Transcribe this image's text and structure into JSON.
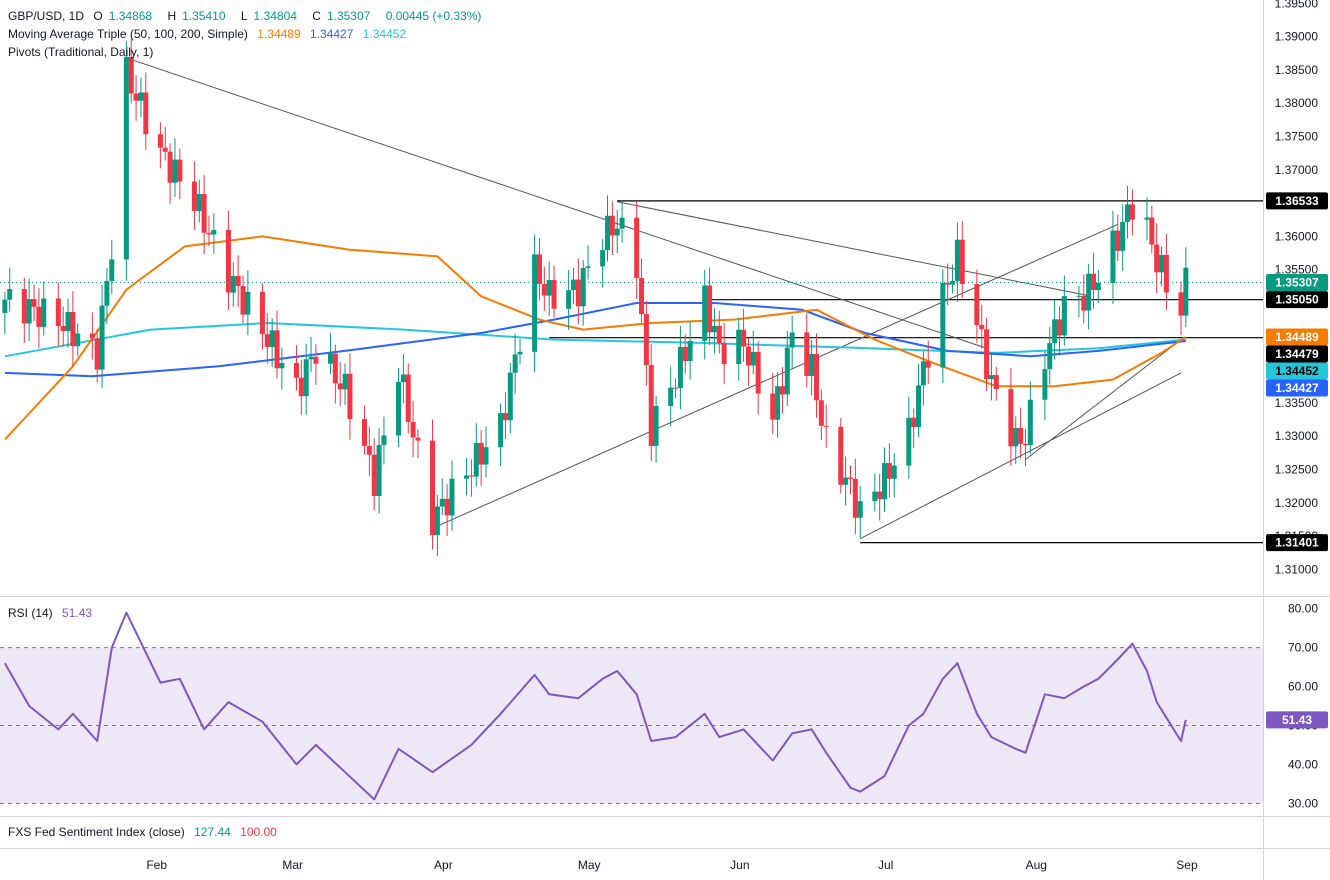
{
  "header": {
    "symbol": "GBP/USD, 1D",
    "o_label": "O",
    "open": "1.34868",
    "h_label": "H",
    "high": "1.35410",
    "l_label": "L",
    "low": "1.34804",
    "c_label": "C",
    "close": "1.35307",
    "change": "0.00445 (+0.33%)",
    "ma_title": "Moving Average Triple (50, 100, 200, Simple)",
    "ma50": "1.34489",
    "ma100": "1.34427",
    "ma200": "1.34452",
    "pivots_title": "Pivots (Traditional, Daily, 1)"
  },
  "rsi_panel": {
    "title": "RSI (14)",
    "value": "51.43"
  },
  "sentiment_panel": {
    "title": "FXS Fed Sentiment Index (close)",
    "value1": "127.44",
    "value2": "100.00"
  },
  "colors": {
    "up": "#089981",
    "down": "#f23645",
    "ma50": "#f57c00",
    "ma100": "#2962ff",
    "ma200": "#26c6da",
    "rsi": "#7e57c2",
    "rsi_band": "#ede7f6"
  },
  "chart_data": {
    "type": "candlestick",
    "price_axis": {
      "min": 1.306,
      "max": 1.3955,
      "ticks": [
        "1.39500",
        "1.39000",
        "1.38500",
        "1.38000",
        "1.37500",
        "1.37000",
        "1.36500",
        "1.36000",
        "1.35500",
        "1.35000",
        "1.34500",
        "1.34000",
        "1.33500",
        "1.33000",
        "1.32500",
        "1.32000",
        "1.31500",
        "1.31000"
      ]
    },
    "x_labels": [
      {
        "label": "Feb",
        "day": "2025-02-01"
      },
      {
        "label": "Mar",
        "day": "2025-03-01"
      },
      {
        "label": "Apr",
        "day": "2025-04-01"
      },
      {
        "label": "May",
        "day": "2025-05-01"
      },
      {
        "label": "Jun",
        "day": "2025-06-01"
      },
      {
        "label": "Jul",
        "day": "2025-07-01"
      },
      {
        "label": "Aug",
        "day": "2025-08-01"
      },
      {
        "label": "Sep",
        "day": "2025-09-01"
      }
    ],
    "price_tags": [
      {
        "value": "1.36533",
        "color": "#000000",
        "text_color": "#ffffff"
      },
      {
        "value": "1.35307",
        "color": "#089981",
        "text_color": "#ffffff"
      },
      {
        "value": "1.35050",
        "color": "#000000",
        "text_color": "#ffffff"
      },
      {
        "value": "1.34489",
        "color": "#f57c00",
        "text_color": "#ffffff"
      },
      {
        "value": "1.34479",
        "color": "#000000",
        "text_color": "#ffffff"
      },
      {
        "value": "1.34452",
        "color": "#26c6da",
        "text_color": "#000000"
      },
      {
        "value": "1.34427",
        "color": "#2962ff",
        "text_color": "#ffffff"
      },
      {
        "value": "1.31401",
        "color": "#000000",
        "text_color": "#ffffff"
      }
    ],
    "horizontal_levels": [
      {
        "value": 1.36533,
        "from": "2025-05-08"
      },
      {
        "value": 1.3505,
        "from": "2025-05-26"
      },
      {
        "value": 1.34479,
        "from": "2025-04-24"
      },
      {
        "value": 1.31401,
        "from": "2025-06-27"
      }
    ],
    "trendlines": [
      [
        [
          "2025-01-27",
          1.3868
        ],
        [
          "2025-07-23",
          1.3432
        ]
      ],
      [
        [
          "2025-05-08",
          1.3652
        ],
        [
          "2025-08-13",
          1.3511
        ]
      ],
      [
        [
          "2025-04-01",
          1.3165
        ],
        [
          "2025-08-19",
          1.3618
        ]
      ],
      [
        [
          "2025-07-31",
          1.3265
        ],
        [
          "2025-09-01",
          1.3445
        ]
      ],
      [
        [
          "2025-06-27",
          1.3146
        ],
        [
          "2025-09-01",
          1.3395
        ]
      ]
    ],
    "key_points": [
      {
        "day": "2025-01-02",
        "close": 1.3505
      },
      {
        "day": "2025-01-13",
        "close": 1.3475
      },
      {
        "day": "2025-01-21",
        "close": 1.3425
      },
      {
        "day": "2025-01-24",
        "close": 1.3585
      },
      {
        "day": "2025-01-27",
        "close": 1.3845
      },
      {
        "day": "2025-02-03",
        "close": 1.3725
      },
      {
        "day": "2025-02-10",
        "close": 1.3655
      },
      {
        "day": "2025-02-17",
        "close": 1.354
      },
      {
        "day": "2025-02-24",
        "close": 1.346
      },
      {
        "day": "2025-03-03",
        "close": 1.337
      },
      {
        "day": "2025-03-07",
        "close": 1.343
      },
      {
        "day": "2025-03-13",
        "close": 1.337
      },
      {
        "day": "2025-03-19",
        "close": 1.3235
      },
      {
        "day": "2025-03-24",
        "close": 1.34
      },
      {
        "day": "2025-03-31",
        "close": 1.3175
      },
      {
        "day": "2025-04-08",
        "close": 1.3255
      },
      {
        "day": "2025-04-14",
        "close": 1.3315
      },
      {
        "day": "2025-04-21",
        "close": 1.355
      },
      {
        "day": "2025-04-24",
        "close": 1.351
      },
      {
        "day": "2025-04-30",
        "close": 1.352
      },
      {
        "day": "2025-05-05",
        "close": 1.36
      },
      {
        "day": "2025-05-08",
        "close": 1.362
      },
      {
        "day": "2025-05-12",
        "close": 1.356
      },
      {
        "day": "2025-05-15",
        "close": 1.331
      },
      {
        "day": "2025-05-20",
        "close": 1.339
      },
      {
        "day": "2025-05-26",
        "close": 1.3505
      },
      {
        "day": "2025-05-29",
        "close": 1.343
      },
      {
        "day": "2025-06-03",
        "close": 1.344
      },
      {
        "day": "2025-06-09",
        "close": 1.3325
      },
      {
        "day": "2025-06-13",
        "close": 1.345
      },
      {
        "day": "2025-06-17",
        "close": 1.34
      },
      {
        "day": "2025-06-20",
        "close": 1.329
      },
      {
        "day": "2025-06-25",
        "close": 1.322
      },
      {
        "day": "2025-06-27",
        "close": 1.3185
      },
      {
        "day": "2025-07-02",
        "close": 1.3235
      },
      {
        "day": "2025-07-07",
        "close": 1.3305
      },
      {
        "day": "2025-07-10",
        "close": 1.34
      },
      {
        "day": "2025-07-14",
        "close": 1.351
      },
      {
        "day": "2025-07-17",
        "close": 1.357
      },
      {
        "day": "2025-07-21",
        "close": 1.347
      },
      {
        "day": "2025-07-24",
        "close": 1.338
      },
      {
        "day": "2025-07-29",
        "close": 1.329
      },
      {
        "day": "2025-07-31",
        "close": 1.33
      },
      {
        "day": "2025-08-04",
        "close": 1.342
      },
      {
        "day": "2025-08-08",
        "close": 1.3495
      },
      {
        "day": "2025-08-12",
        "close": 1.351
      },
      {
        "day": "2025-08-15",
        "close": 1.354
      },
      {
        "day": "2025-08-19",
        "close": 1.36
      },
      {
        "day": "2025-08-22",
        "close": 1.365
      },
      {
        "day": "2025-08-25",
        "close": 1.361
      },
      {
        "day": "2025-08-27",
        "close": 1.3565
      },
      {
        "day": "2025-08-29",
        "close": 1.353
      },
      {
        "day": "2025-09-01",
        "close": 1.3487
      },
      {
        "day": "2025-09-02",
        "close": 1.3531
      }
    ],
    "ma50_points": [
      {
        "day": "2025-01-02",
        "v": 1.3295
      },
      {
        "day": "2025-01-16",
        "v": 1.3405
      },
      {
        "day": "2025-01-27",
        "v": 1.352
      },
      {
        "day": "2025-02-08",
        "v": 1.3585
      },
      {
        "day": "2025-02-24",
        "v": 1.36
      },
      {
        "day": "2025-03-14",
        "v": 1.358
      },
      {
        "day": "2025-04-01",
        "v": 1.357
      },
      {
        "day": "2025-04-10",
        "v": 1.351
      },
      {
        "day": "2025-04-22",
        "v": 1.3475
      },
      {
        "day": "2025-05-01",
        "v": 1.346
      },
      {
        "day": "2025-05-15",
        "v": 1.347
      },
      {
        "day": "2025-06-01",
        "v": 1.3475
      },
      {
        "day": "2025-06-18",
        "v": 1.349
      },
      {
        "day": "2025-06-30",
        "v": 1.3445
      },
      {
        "day": "2025-07-12",
        "v": 1.341
      },
      {
        "day": "2025-07-25",
        "v": 1.3375
      },
      {
        "day": "2025-08-06",
        "v": 1.3375
      },
      {
        "day": "2025-08-18",
        "v": 1.3385
      },
      {
        "day": "2025-08-28",
        "v": 1.3425
      },
      {
        "day": "2025-09-02",
        "v": 1.3449
      }
    ],
    "ma100_points": [
      {
        "day": "2025-01-02",
        "v": 1.3395
      },
      {
        "day": "2025-01-20",
        "v": 1.339
      },
      {
        "day": "2025-02-15",
        "v": 1.3405
      },
      {
        "day": "2025-03-15",
        "v": 1.343
      },
      {
        "day": "2025-04-10",
        "v": 1.3455
      },
      {
        "day": "2025-04-25",
        "v": 1.3475
      },
      {
        "day": "2025-05-12",
        "v": 1.35
      },
      {
        "day": "2025-05-28",
        "v": 1.35
      },
      {
        "day": "2025-06-15",
        "v": 1.349
      },
      {
        "day": "2025-06-28",
        "v": 1.3455
      },
      {
        "day": "2025-07-15",
        "v": 1.3428
      },
      {
        "day": "2025-08-01",
        "v": 1.342
      },
      {
        "day": "2025-08-15",
        "v": 1.3428
      },
      {
        "day": "2025-09-02",
        "v": 1.3443
      }
    ],
    "ma200_points": [
      {
        "day": "2025-01-02",
        "v": 1.342
      },
      {
        "day": "2025-02-01",
        "v": 1.346
      },
      {
        "day": "2025-02-25",
        "v": 1.347
      },
      {
        "day": "2025-03-25",
        "v": 1.346
      },
      {
        "day": "2025-04-25",
        "v": 1.3445
      },
      {
        "day": "2025-05-25",
        "v": 1.344
      },
      {
        "day": "2025-06-25",
        "v": 1.3433
      },
      {
        "day": "2025-07-25",
        "v": 1.3425
      },
      {
        "day": "2025-08-15",
        "v": 1.3432
      },
      {
        "day": "2025-09-02",
        "v": 1.3445
      }
    ],
    "rsi_axis": {
      "min": 27,
      "max": 83,
      "ticks": [
        "80.00",
        "70.00",
        "60.00",
        "50.00",
        "40.00",
        "30.00"
      ],
      "upper_band": 70,
      "mid": 50,
      "lower_band": 30
    },
    "rsi_points": [
      {
        "day": "2025-01-02",
        "v": 66
      },
      {
        "day": "2025-01-07",
        "v": 55
      },
      {
        "day": "2025-01-13",
        "v": 49
      },
      {
        "day": "2025-01-16",
        "v": 53
      },
      {
        "day": "2025-01-21",
        "v": 46
      },
      {
        "day": "2025-01-24",
        "v": 70
      },
      {
        "day": "2025-01-27",
        "v": 79
      },
      {
        "day": "2025-02-03",
        "v": 61
      },
      {
        "day": "2025-02-07",
        "v": 62
      },
      {
        "day": "2025-02-12",
        "v": 49
      },
      {
        "day": "2025-02-17",
        "v": 56
      },
      {
        "day": "2025-02-24",
        "v": 51
      },
      {
        "day": "2025-03-03",
        "v": 40
      },
      {
        "day": "2025-03-07",
        "v": 45
      },
      {
        "day": "2025-03-13",
        "v": 38
      },
      {
        "day": "2025-03-19",
        "v": 31
      },
      {
        "day": "2025-03-24",
        "v": 44
      },
      {
        "day": "2025-03-31",
        "v": 38
      },
      {
        "day": "2025-04-08",
        "v": 45
      },
      {
        "day": "2025-04-14",
        "v": 53
      },
      {
        "day": "2025-04-21",
        "v": 63
      },
      {
        "day": "2025-04-24",
        "v": 58
      },
      {
        "day": "2025-04-30",
        "v": 57
      },
      {
        "day": "2025-05-05",
        "v": 62
      },
      {
        "day": "2025-05-08",
        "v": 64
      },
      {
        "day": "2025-05-12",
        "v": 58
      },
      {
        "day": "2025-05-15",
        "v": 46
      },
      {
        "day": "2025-05-20",
        "v": 47
      },
      {
        "day": "2025-05-26",
        "v": 53
      },
      {
        "day": "2025-05-29",
        "v": 47
      },
      {
        "day": "2025-06-03",
        "v": 49
      },
      {
        "day": "2025-06-09",
        "v": 41
      },
      {
        "day": "2025-06-13",
        "v": 48
      },
      {
        "day": "2025-06-17",
        "v": 49
      },
      {
        "day": "2025-06-20",
        "v": 43
      },
      {
        "day": "2025-06-25",
        "v": 34
      },
      {
        "day": "2025-06-27",
        "v": 33
      },
      {
        "day": "2025-07-02",
        "v": 37
      },
      {
        "day": "2025-07-07",
        "v": 50
      },
      {
        "day": "2025-07-10",
        "v": 53
      },
      {
        "day": "2025-07-14",
        "v": 62
      },
      {
        "day": "2025-07-17",
        "v": 66
      },
      {
        "day": "2025-07-21",
        "v": 53
      },
      {
        "day": "2025-07-24",
        "v": 47
      },
      {
        "day": "2025-07-29",
        "v": 44
      },
      {
        "day": "2025-07-31",
        "v": 43
      },
      {
        "day": "2025-08-04",
        "v": 58
      },
      {
        "day": "2025-08-08",
        "v": 57
      },
      {
        "day": "2025-08-12",
        "v": 60
      },
      {
        "day": "2025-08-15",
        "v": 62
      },
      {
        "day": "2025-08-19",
        "v": 67
      },
      {
        "day": "2025-08-22",
        "v": 71
      },
      {
        "day": "2025-08-25",
        "v": 64
      },
      {
        "day": "2025-08-27",
        "v": 56
      },
      {
        "day": "2025-08-29",
        "v": 52
      },
      {
        "day": "2025-09-01",
        "v": 46
      },
      {
        "day": "2025-09-02",
        "v": 51.43
      }
    ]
  }
}
